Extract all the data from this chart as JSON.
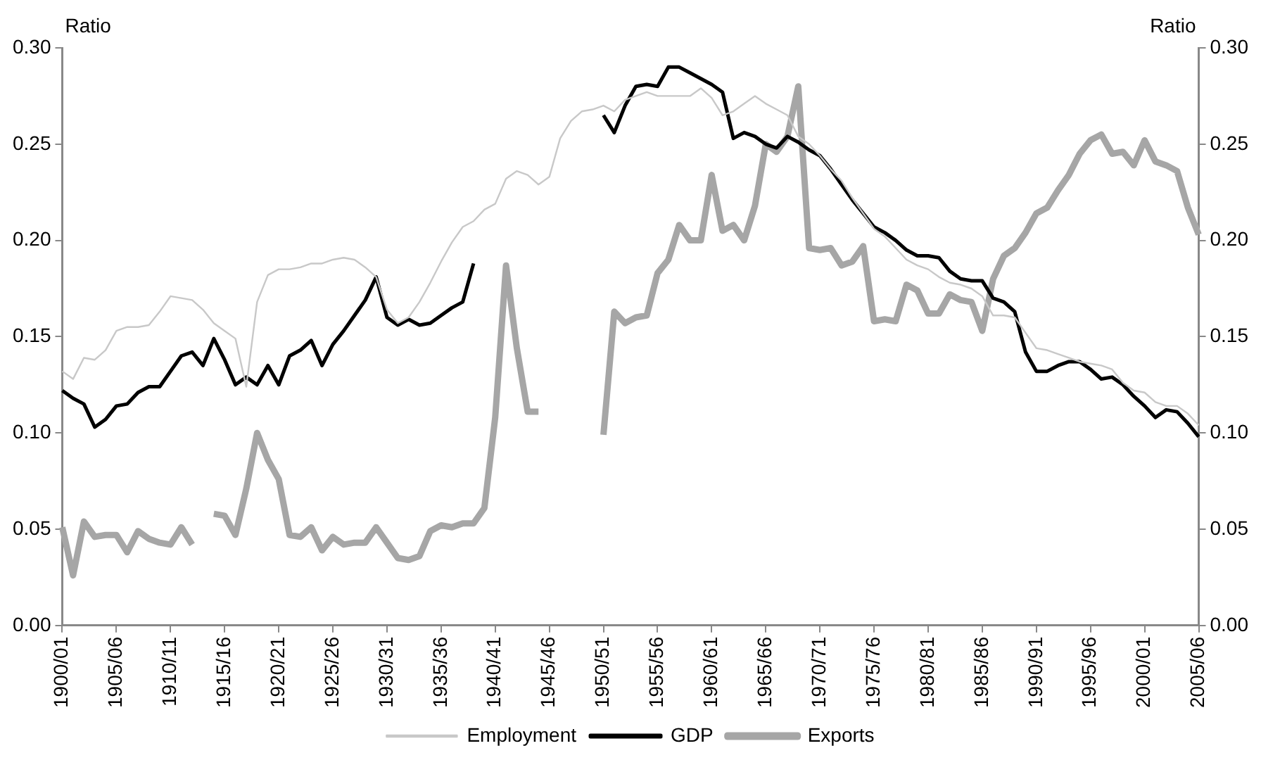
{
  "chart_data": {
    "type": "line",
    "ylabel": "Ratio",
    "y2label": "Ratio",
    "categories": [
      "1900/01",
      null,
      null,
      null,
      null,
      "1905/06",
      null,
      null,
      null,
      null,
      "1910/11",
      null,
      null,
      null,
      null,
      "1915/16",
      null,
      null,
      null,
      null,
      "1920/21",
      null,
      null,
      null,
      null,
      "1925/26",
      null,
      null,
      null,
      null,
      "1930/31",
      null,
      null,
      null,
      null,
      "1935/36",
      null,
      null,
      null,
      null,
      "1940/41",
      null,
      null,
      null,
      null,
      "1945/46",
      null,
      null,
      null,
      null,
      "1950/51",
      null,
      null,
      null,
      null,
      "1955/56",
      null,
      null,
      null,
      null,
      "1960/61",
      null,
      null,
      null,
      null,
      "1965/66",
      null,
      null,
      null,
      null,
      "1970/71",
      null,
      null,
      null,
      null,
      "1975/76",
      null,
      null,
      null,
      null,
      "1980/81",
      null,
      null,
      null,
      null,
      "1985/86",
      null,
      null,
      null,
      null,
      "1990/91",
      null,
      null,
      null,
      null,
      "1995/96",
      null,
      null,
      null,
      null,
      "2000/01",
      null,
      null,
      null,
      null,
      "2005/06"
    ],
    "series": [
      {
        "name": "Employment",
        "color": "#c8c8c8",
        "values": [
          0.132,
          0.128,
          0.139,
          0.138,
          0.143,
          0.153,
          0.155,
          0.155,
          0.156,
          0.163,
          0.171,
          0.17,
          0.169,
          0.164,
          0.157,
          0.153,
          0.149,
          0.124,
          0.168,
          0.182,
          0.185,
          0.185,
          0.186,
          0.188,
          0.188,
          0.19,
          0.191,
          0.19,
          0.186,
          0.181,
          0.164,
          0.157,
          0.16,
          0.168,
          0.178,
          0.189,
          0.199,
          0.207,
          0.21,
          0.216,
          0.219,
          0.232,
          0.236,
          0.234,
          0.229,
          0.233,
          0.253,
          0.262,
          0.267,
          0.268,
          0.27,
          0.267,
          0.273,
          0.275,
          0.277,
          0.275,
          0.275,
          0.275,
          0.275,
          0.279,
          0.274,
          0.265,
          0.267,
          0.271,
          0.275,
          0.271,
          0.268,
          0.265,
          0.254,
          0.25,
          0.244,
          0.237,
          0.231,
          0.222,
          0.214,
          0.206,
          0.202,
          0.196,
          0.19,
          0.187,
          0.185,
          0.181,
          0.178,
          0.177,
          0.175,
          0.171,
          0.161,
          0.161,
          0.16,
          0.152,
          0.144,
          0.143,
          0.141,
          0.139,
          0.137,
          0.136,
          0.135,
          0.133,
          0.126,
          0.122,
          0.121,
          0.116,
          0.114,
          0.114,
          0.11,
          0.104
        ]
      },
      {
        "name": "GDP",
        "color": "#000000",
        "values": [
          0.122,
          0.118,
          0.115,
          0.103,
          0.107,
          0.114,
          0.115,
          0.121,
          0.124,
          0.124,
          0.132,
          0.14,
          0.142,
          0.135,
          0.149,
          0.138,
          0.125,
          0.129,
          0.125,
          0.135,
          0.125,
          0.14,
          0.143,
          0.148,
          0.135,
          0.146,
          0.153,
          0.161,
          0.169,
          0.181,
          0.16,
          0.156,
          0.159,
          0.156,
          0.157,
          0.161,
          0.165,
          0.168,
          0.188,
          null,
          null,
          null,
          null,
          null,
          null,
          null,
          null,
          null,
          null,
          null,
          0.265,
          0.256,
          0.27,
          0.28,
          0.281,
          0.28,
          0.29,
          0.29,
          0.287,
          0.284,
          0.281,
          0.277,
          0.253,
          0.256,
          0.254,
          0.25,
          0.248,
          0.254,
          0.251,
          0.247,
          0.244,
          0.237,
          0.229,
          0.221,
          0.214,
          0.207,
          0.204,
          0.2,
          0.195,
          0.192,
          0.192,
          0.191,
          0.184,
          0.18,
          0.179,
          0.179,
          0.17,
          0.168,
          0.163,
          0.142,
          0.132,
          0.132,
          0.135,
          0.137,
          0.137,
          0.133,
          0.128,
          0.129,
          0.125,
          0.119,
          0.114,
          0.108,
          0.112,
          0.111,
          0.105,
          0.098
        ]
      },
      {
        "name": "Exports",
        "color": "#a6a6a6",
        "values": [
          0.051,
          0.026,
          0.054,
          0.046,
          0.047,
          0.047,
          0.038,
          0.049,
          0.045,
          0.043,
          0.042,
          0.051,
          0.042,
          null,
          0.058,
          0.057,
          0.047,
          0.071,
          0.1,
          0.086,
          0.076,
          0.047,
          0.046,
          0.051,
          0.039,
          0.046,
          0.042,
          0.043,
          0.043,
          0.051,
          0.043,
          0.035,
          0.034,
          0.036,
          0.049,
          0.052,
          0.051,
          0.053,
          0.053,
          0.061,
          0.108,
          0.187,
          0.144,
          0.111,
          0.111,
          null,
          null,
          null,
          null,
          null,
          0.099,
          0.163,
          0.157,
          0.16,
          0.161,
          0.183,
          0.19,
          0.208,
          0.2,
          0.2,
          0.234,
          0.205,
          0.208,
          0.2,
          0.218,
          0.25,
          0.246,
          0.254,
          0.28,
          0.196,
          0.195,
          0.196,
          0.187,
          0.189,
          0.197,
          0.158,
          0.159,
          0.158,
          0.177,
          0.174,
          0.162,
          0.162,
          0.172,
          0.169,
          0.168,
          0.153,
          0.18,
          0.192,
          0.196,
          0.204,
          0.214,
          0.217,
          0.226,
          0.234,
          0.245,
          0.252,
          0.255,
          0.245,
          0.246,
          0.239,
          0.252,
          0.241,
          0.239,
          0.236,
          0.217,
          0.203
        ]
      }
    ],
    "ylim": [
      0,
      0.3
    ],
    "yticks": [
      {
        "value": 0,
        "label": "0.00"
      },
      {
        "value": 0.05,
        "label": "0.05"
      },
      {
        "value": 0.1,
        "label": "0.10"
      },
      {
        "value": 0.15,
        "label": "0.15"
      },
      {
        "value": 0.2,
        "label": "0.20"
      },
      {
        "value": 0.25,
        "label": "0.25"
      },
      {
        "value": 0.3,
        "label": "0.30"
      }
    ],
    "y2lim": [
      0,
      0.3
    ],
    "y2ticks": [
      {
        "value": 0,
        "label": "0.00"
      },
      {
        "value": 0.05,
        "label": "0.05"
      },
      {
        "value": 0.1,
        "label": "0.10"
      },
      {
        "value": 0.15,
        "label": "0.15"
      },
      {
        "value": 0.2,
        "label": "0.20"
      },
      {
        "value": 0.25,
        "label": "0.25"
      },
      {
        "value": 0.3,
        "label": "0.30"
      }
    ],
    "grid": false,
    "legend": "bottom",
    "marker": "none",
    "line_style": "solid"
  }
}
